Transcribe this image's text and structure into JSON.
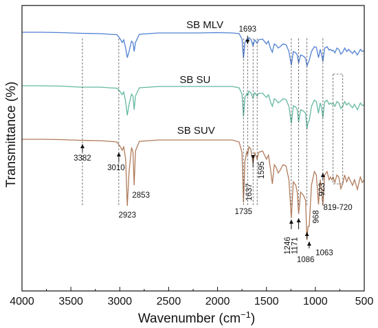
{
  "chart_data": {
    "type": "line",
    "xlabel": "Wavenumber (cm",
    "xlabel_sup": "−1",
    "xlabel_end": ")",
    "ylabel": "Transmittance (%)",
    "xlim": [
      4000,
      500
    ],
    "x_reversed": true,
    "xticks": [
      4000,
      3500,
      3000,
      2500,
      2000,
      1500,
      1000,
      500
    ],
    "yticks": false,
    "grid": false,
    "series": [
      {
        "name": "SB MLV",
        "color": "#4f7fd2",
        "points": [
          [
            4000,
            47
          ],
          [
            3800,
            47
          ],
          [
            3600,
            47.5
          ],
          [
            3400,
            48.5
          ],
          [
            3200,
            49
          ],
          [
            3100,
            50
          ],
          [
            3030,
            50.5
          ],
          [
            3010,
            54
          ],
          [
            2990,
            58
          ],
          [
            2975,
            62
          ],
          [
            2960,
            58
          ],
          [
            2940,
            70
          ],
          [
            2923,
            84
          ],
          [
            2905,
            75
          ],
          [
            2880,
            60
          ],
          [
            2865,
            62
          ],
          [
            2853,
            75
          ],
          [
            2840,
            62
          ],
          [
            2800,
            50
          ],
          [
            2600,
            48
          ],
          [
            2400,
            48
          ],
          [
            2200,
            48
          ],
          [
            2000,
            47.5
          ],
          [
            1850,
            48
          ],
          [
            1780,
            49
          ],
          [
            1750,
            57
          ],
          [
            1735,
            85
          ],
          [
            1720,
            62
          ],
          [
            1700,
            57
          ],
          [
            1693,
            64
          ],
          [
            1680,
            55
          ],
          [
            1660,
            57
          ],
          [
            1637,
            67
          ],
          [
            1620,
            58
          ],
          [
            1595,
            63
          ],
          [
            1580,
            58
          ],
          [
            1540,
            57
          ],
          [
            1500,
            64
          ],
          [
            1480,
            60
          ],
          [
            1460,
            70
          ],
          [
            1440,
            76
          ],
          [
            1420,
            64
          ],
          [
            1400,
            66
          ],
          [
            1380,
            70
          ],
          [
            1360,
            68
          ],
          [
            1330,
            64
          ],
          [
            1300,
            65
          ],
          [
            1270,
            75
          ],
          [
            1246,
            95
          ],
          [
            1225,
            75
          ],
          [
            1200,
            77
          ],
          [
            1185,
            80
          ],
          [
            1171,
            92
          ],
          [
            1150,
            80
          ],
          [
            1120,
            82
          ],
          [
            1100,
            85
          ],
          [
            1086,
            96
          ],
          [
            1075,
            92
          ],
          [
            1063,
            88
          ],
          [
            1040,
            75
          ],
          [
            1010,
            68
          ],
          [
            990,
            69
          ],
          [
            968,
            84
          ],
          [
            950,
            72
          ],
          [
            935,
            80
          ],
          [
            923,
            90
          ],
          [
            905,
            70
          ],
          [
            880,
            68
          ],
          [
            860,
            73
          ],
          [
            845,
            72
          ],
          [
            830,
            74
          ],
          [
            819,
            73
          ],
          [
            800,
            77
          ],
          [
            780,
            70
          ],
          [
            760,
            72
          ],
          [
            740,
            79
          ],
          [
            720,
            76
          ],
          [
            700,
            70
          ],
          [
            680,
            75
          ],
          [
            660,
            72
          ],
          [
            640,
            75
          ],
          [
            620,
            78
          ],
          [
            600,
            74
          ],
          [
            570,
            80
          ],
          [
            540,
            72
          ],
          [
            520,
            75
          ],
          [
            500,
            74
          ]
        ]
      },
      {
        "name": "SB SU",
        "color": "#63b8a2",
        "points": [
          [
            4000,
            125
          ],
          [
            3800,
            125
          ],
          [
            3600,
            125.5
          ],
          [
            3400,
            127
          ],
          [
            3200,
            127
          ],
          [
            3100,
            128
          ],
          [
            3030,
            128.5
          ],
          [
            3010,
            131
          ],
          [
            2990,
            135
          ],
          [
            2975,
            138
          ],
          [
            2960,
            134
          ],
          [
            2940,
            148
          ],
          [
            2923,
            168
          ],
          [
            2905,
            152
          ],
          [
            2880,
            137
          ],
          [
            2865,
            140
          ],
          [
            2853,
            160
          ],
          [
            2840,
            140
          ],
          [
            2800,
            128
          ],
          [
            2600,
            126
          ],
          [
            2400,
            126
          ],
          [
            2200,
            126
          ],
          [
            2000,
            126
          ],
          [
            1850,
            126
          ],
          [
            1780,
            128
          ],
          [
            1750,
            137
          ],
          [
            1735,
            170
          ],
          [
            1720,
            142
          ],
          [
            1700,
            136
          ],
          [
            1693,
            140
          ],
          [
            1680,
            133
          ],
          [
            1660,
            135
          ],
          [
            1637,
            143
          ],
          [
            1620,
            135
          ],
          [
            1595,
            140
          ],
          [
            1580,
            136
          ],
          [
            1540,
            136
          ],
          [
            1500,
            142
          ],
          [
            1480,
            138
          ],
          [
            1460,
            148
          ],
          [
            1440,
            155
          ],
          [
            1420,
            144
          ],
          [
            1400,
            146
          ],
          [
            1380,
            150
          ],
          [
            1360,
            148
          ],
          [
            1330,
            144
          ],
          [
            1300,
            145
          ],
          [
            1270,
            155
          ],
          [
            1246,
            180
          ],
          [
            1225,
            154
          ],
          [
            1200,
            156
          ],
          [
            1185,
            160
          ],
          [
            1171,
            178
          ],
          [
            1150,
            160
          ],
          [
            1120,
            162
          ],
          [
            1100,
            165
          ],
          [
            1086,
            188
          ],
          [
            1075,
            178
          ],
          [
            1063,
            176
          ],
          [
            1040,
            155
          ],
          [
            1010,
            146
          ],
          [
            990,
            148
          ],
          [
            968,
            165
          ],
          [
            950,
            150
          ],
          [
            935,
            158
          ],
          [
            923,
            172
          ],
          [
            905,
            148
          ],
          [
            880,
            146
          ],
          [
            860,
            152
          ],
          [
            845,
            150
          ],
          [
            830,
            152
          ],
          [
            819,
            150
          ],
          [
            800,
            155
          ],
          [
            780,
            148
          ],
          [
            760,
            150
          ],
          [
            740,
            158
          ],
          [
            720,
            155
          ],
          [
            700,
            148
          ],
          [
            680,
            153
          ],
          [
            660,
            150
          ],
          [
            640,
            154
          ],
          [
            620,
            157
          ],
          [
            600,
            152
          ],
          [
            570,
            160
          ],
          [
            540,
            150
          ],
          [
            520,
            154
          ],
          [
            500,
            152
          ]
        ]
      },
      {
        "name": "SB SUV",
        "color": "#b07a5a",
        "points": [
          [
            4000,
            203
          ],
          [
            3800,
            203
          ],
          [
            3600,
            203.5
          ],
          [
            3400,
            204.5
          ],
          [
            3200,
            205
          ],
          [
            3100,
            206
          ],
          [
            3030,
            207
          ],
          [
            3010,
            211
          ],
          [
            2990,
            215
          ],
          [
            2975,
            219
          ],
          [
            2960,
            214
          ],
          [
            2940,
            232
          ],
          [
            2923,
            300
          ],
          [
            2905,
            250
          ],
          [
            2880,
            215
          ],
          [
            2865,
            222
          ],
          [
            2853,
            270
          ],
          [
            2840,
            220
          ],
          [
            2800,
            206
          ],
          [
            2600,
            204
          ],
          [
            2400,
            204
          ],
          [
            2200,
            204
          ],
          [
            2000,
            204
          ],
          [
            1850,
            204
          ],
          [
            1780,
            207
          ],
          [
            1750,
            222
          ],
          [
            1735,
            295
          ],
          [
            1720,
            235
          ],
          [
            1700,
            220
          ],
          [
            1693,
            226
          ],
          [
            1680,
            214
          ],
          [
            1660,
            217
          ],
          [
            1637,
            238
          ],
          [
            1620,
            222
          ],
          [
            1595,
            232
          ],
          [
            1580,
            222
          ],
          [
            1540,
            220
          ],
          [
            1500,
            232
          ],
          [
            1480,
            226
          ],
          [
            1460,
            245
          ],
          [
            1440,
            268
          ],
          [
            1420,
            240
          ],
          [
            1400,
            244
          ],
          [
            1380,
            252
          ],
          [
            1360,
            248
          ],
          [
            1330,
            240
          ],
          [
            1300,
            242
          ],
          [
            1270,
            262
          ],
          [
            1246,
            318
          ],
          [
            1225,
            265
          ],
          [
            1200,
            270
          ],
          [
            1185,
            280
          ],
          [
            1171,
            312
          ],
          [
            1150,
            280
          ],
          [
            1120,
            285
          ],
          [
            1100,
            292
          ],
          [
            1086,
            350
          ],
          [
            1075,
            330
          ],
          [
            1063,
            330
          ],
          [
            1040,
            270
          ],
          [
            1010,
            250
          ],
          [
            990,
            255
          ],
          [
            968,
            298
          ],
          [
            950,
            262
          ],
          [
            935,
            280
          ],
          [
            923,
            300
          ],
          [
            905,
            255
          ],
          [
            880,
            250
          ],
          [
            860,
            262
          ],
          [
            845,
            258
          ],
          [
            830,
            262
          ],
          [
            819,
            258
          ],
          [
            800,
            266
          ],
          [
            780,
            255
          ],
          [
            760,
            258
          ],
          [
            740,
            275
          ],
          [
            720,
            268
          ],
          [
            700,
            255
          ],
          [
            680,
            265
          ],
          [
            660,
            258
          ],
          [
            640,
            264
          ],
          [
            620,
            270
          ],
          [
            600,
            262
          ],
          [
            570,
            276
          ],
          [
            540,
            258
          ],
          [
            520,
            266
          ],
          [
            500,
            262
          ]
        ]
      }
    ],
    "annotations": [
      {
        "text": "3382",
        "x": 3382,
        "arrow": "up"
      },
      {
        "text": "3010",
        "x": 3010,
        "arrow": "up"
      },
      {
        "text": "2923",
        "x": 2923,
        "arrow": "none"
      },
      {
        "text": "2853",
        "x": 2853,
        "arrow": "none"
      },
      {
        "text": "1735",
        "x": 1735,
        "arrow": "none"
      },
      {
        "text": "1693",
        "x": 1693,
        "arrow": "down"
      },
      {
        "text": "1637",
        "x": 1637,
        "arrow": "down"
      },
      {
        "text": "1595",
        "x": 1595,
        "arrow": "down"
      },
      {
        "text": "1246",
        "x": 1246,
        "arrow": "up"
      },
      {
        "text": "1171",
        "x": 1171,
        "arrow": "up"
      },
      {
        "text": "1086",
        "x": 1086,
        "arrow": "up"
      },
      {
        "text": "1063",
        "x": 1063,
        "arrow": "up"
      },
      {
        "text": "968",
        "x": 968,
        "arrow": "none"
      },
      {
        "text": "923",
        "x": 923,
        "arrow": "up"
      },
      {
        "text": "819-720",
        "x_range": [
          819,
          720
        ],
        "arrow": "none"
      }
    ]
  }
}
